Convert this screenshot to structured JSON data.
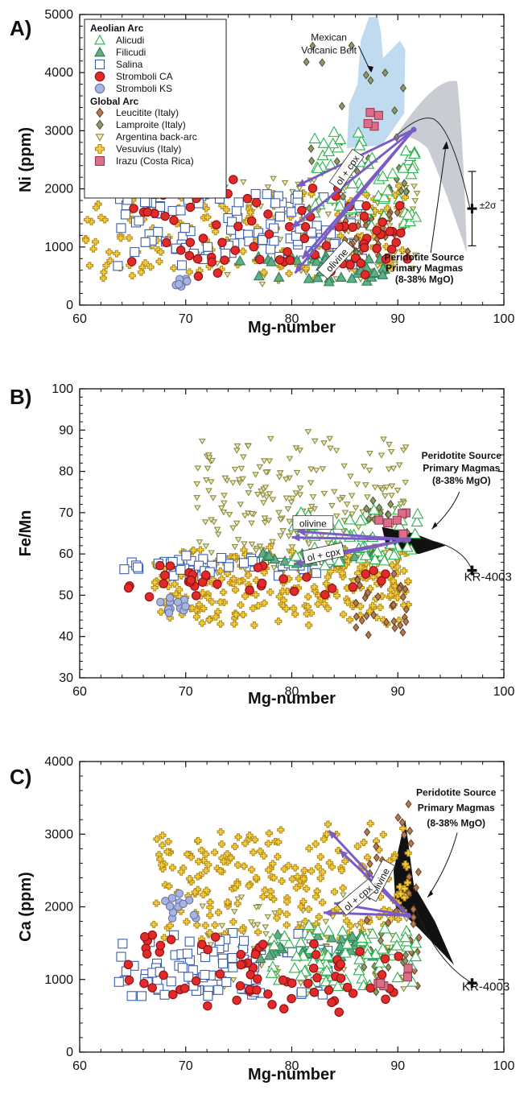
{
  "legend": {
    "group1_title": "Aeolian Arc",
    "group2_title": "Global Arc",
    "entries": [
      {
        "key": "alicudi",
        "label": "Alicudi"
      },
      {
        "key": "filicudi",
        "label": "Filicudi"
      },
      {
        "key": "salina",
        "label": "Salina"
      },
      {
        "key": "stromboli_ca",
        "label": "Stromboli CA"
      },
      {
        "key": "stromboli_ks",
        "label": "Stromboli KS"
      },
      {
        "key": "leucitite",
        "label": "Leucitite (Italy)"
      },
      {
        "key": "lamproite",
        "label": "Lamproite (Italy)"
      },
      {
        "key": "argentina",
        "label": "Argentina back-arc"
      },
      {
        "key": "vesuvius",
        "label": "Vesuvius (Italy)"
      },
      {
        "key": "irazu",
        "label": "Irazu (Costa Rica)"
      }
    ]
  },
  "styles": {
    "alicudi": {
      "shape": "triangle",
      "fill": "#ffffff",
      "stroke": "#2bb24c"
    },
    "filicudi": {
      "shape": "triangle",
      "fill": "#5fae86",
      "stroke": "#2f7d57"
    },
    "salina": {
      "shape": "square",
      "fill": "#ffffff",
      "stroke": "#3b5fb0"
    },
    "stromboli_ca": {
      "shape": "circle",
      "fill": "#e32a2a",
      "stroke": "#8c1010"
    },
    "stromboli_ks": {
      "shape": "circle",
      "fill": "#a8b4e0",
      "stroke": "#6873a8"
    },
    "leucitite": {
      "shape": "diamond",
      "fill": "#b27d55",
      "stroke": "#6b4224"
    },
    "lamproite": {
      "shape": "diamond",
      "fill": "#8e9a6b",
      "stroke": "#505a36"
    },
    "argentina": {
      "shape": "tridown",
      "fill": "#ecebb4",
      "stroke": "#8d8a45"
    },
    "vesuvius": {
      "shape": "cross",
      "fill": "#f7cf44",
      "stroke": "#b48c14"
    },
    "irazu": {
      "shape": "square",
      "fill": "#dc6e8a",
      "stroke": "#9b3b55"
    }
  },
  "colors": {
    "arrow": "#7a5cc4",
    "mvb": "#b9d6ee",
    "peridotite_gray": "#c9cdd3",
    "peridotite_black": "#111111"
  },
  "chart_data": [
    {
      "panel": "A)",
      "type": "scatter",
      "xlabel": "Mg-number",
      "ylabel": "Ni (ppm)",
      "xlim": [
        60,
        100
      ],
      "ylim": [
        0,
        5000
      ],
      "xticks": [
        60,
        70,
        80,
        90,
        100
      ],
      "yticks": [
        0,
        1000,
        2000,
        3000,
        4000,
        5000
      ],
      "annotations": [
        {
          "text": "Mexican",
          "x": 83.5,
          "y": 4550
        },
        {
          "text": "Volcanic Belt",
          "x": 83.5,
          "y": 4330
        },
        {
          "text": "Peridotite Source",
          "x": 92.5,
          "y": 770
        },
        {
          "text": "Primary Magmas",
          "x": 92.5,
          "y": 580
        },
        {
          "text": "(8-38% MgO)",
          "x": 92.5,
          "y": 390
        },
        {
          "text": "±2σ",
          "x": 97.7,
          "y": 1660
        }
      ],
      "arrow_labels": [
        {
          "text": "ol + cpx",
          "x": 85.2,
          "y": 2330,
          "angle": -55
        },
        {
          "text": "olivine",
          "x": 84.2,
          "y": 780,
          "angle": -48
        }
      ],
      "clusters": {
        "vesuvius": {
          "count": 180,
          "x": [
            60.5,
            91
          ],
          "y": [
            200,
            2300
          ]
        },
        "argentina": {
          "count": 90,
          "x": [
            72,
            92
          ],
          "y": [
            0,
            2600
          ]
        },
        "salina": {
          "count": 110,
          "x": [
            63.5,
            87
          ],
          "y": [
            500,
            2200
          ]
        },
        "stromboli_ks": {
          "count": 8,
          "x": [
            68,
            70.5
          ],
          "y": [
            300,
            480
          ]
        },
        "stromboli_ca": {
          "count": 80,
          "x": [
            63.5,
            91
          ],
          "y": [
            200,
            2400
          ]
        },
        "leucitite": {
          "count": 40,
          "x": [
            85,
            91
          ],
          "y": [
            700,
            1900
          ]
        },
        "lamproite": {
          "count": 30,
          "x": [
            81,
            91
          ],
          "y": [
            1200,
            4900
          ]
        },
        "filicudi": {
          "count": 40,
          "x": [
            75,
            89
          ],
          "y": [
            300,
            1000
          ]
        },
        "alicudi": {
          "count": 60,
          "x": [
            82,
            92
          ],
          "y": [
            900,
            3200
          ]
        },
        "irazu": {
          "count": 4,
          "x": [
            86,
            90.5
          ],
          "y": [
            2900,
            3700
          ]
        }
      }
    },
    {
      "panel": "B)",
      "type": "scatter",
      "xlabel": "Mg-number",
      "ylabel": "Fe/Mn",
      "xlim": [
        60,
        100
      ],
      "ylim": [
        30,
        100
      ],
      "xticks": [
        60,
        70,
        80,
        90,
        100
      ],
      "yticks": [
        30,
        40,
        50,
        60,
        70,
        80,
        90,
        100
      ],
      "annotations": [
        {
          "text": "Peridotite Source",
          "x": 96,
          "y": 83
        },
        {
          "text": "Primary Magmas",
          "x": 96,
          "y": 80
        },
        {
          "text": "(8-38% MgO)",
          "x": 96,
          "y": 77
        },
        {
          "text": "KR-4003",
          "x": 98.5,
          "y": 53.5
        }
      ],
      "arrow_labels": [
        {
          "text": "olivine",
          "x": 82,
          "y": 67.5,
          "angle": 0
        },
        {
          "text": "ol + cpx",
          "x": 83,
          "y": 60,
          "angle": -12
        }
      ],
      "clusters": {
        "argentina": {
          "count": 220,
          "x": [
            71,
            91
          ],
          "y": [
            50,
            93
          ]
        },
        "vesuvius": {
          "count": 260,
          "x": [
            67,
            91
          ],
          "y": [
            40,
            65
          ]
        },
        "salina": {
          "count": 50,
          "x": [
            64,
            85
          ],
          "y": [
            54,
            60
          ]
        },
        "stromboli_ks": {
          "count": 12,
          "x": [
            67.5,
            70.5
          ],
          "y": [
            45,
            50
          ]
        },
        "stromboli_ca": {
          "count": 35,
          "x": [
            64,
            91
          ],
          "y": [
            48,
            60
          ]
        },
        "leucitite": {
          "count": 30,
          "x": [
            86,
            91
          ],
          "y": [
            38,
            57
          ]
        },
        "lamproite": {
          "count": 15,
          "x": [
            87,
            91
          ],
          "y": [
            62,
            74
          ]
        },
        "filicudi": {
          "count": 15,
          "x": [
            77,
            88
          ],
          "y": [
            57,
            61
          ]
        },
        "alicudi": {
          "count": 60,
          "x": [
            80,
            92
          ],
          "y": [
            55,
            73
          ]
        },
        "irazu": {
          "count": 6,
          "x": [
            88,
            91
          ],
          "y": [
            64,
            71
          ]
        }
      }
    },
    {
      "panel": "C)",
      "type": "scatter",
      "xlabel": "Mg-number",
      "ylabel": "Ca (ppm)",
      "xlim": [
        60,
        100
      ],
      "ylim": [
        0,
        4000
      ],
      "xticks": [
        60,
        70,
        80,
        90,
        100
      ],
      "yticks": [
        0,
        1000,
        2000,
        3000,
        4000
      ],
      "annotations": [
        {
          "text": "Peridotite Source",
          "x": 95.5,
          "y": 3530
        },
        {
          "text": "Primary Magmas",
          "x": 95.5,
          "y": 3320
        },
        {
          "text": "(8-38% MgO)",
          "x": 95.5,
          "y": 3110
        },
        {
          "text": "KR-4003",
          "x": 98.3,
          "y": 850
        }
      ],
      "arrow_labels": [
        {
          "text": "olivine",
          "x": 88.3,
          "y": 2360,
          "angle": -62
        },
        {
          "text": "ol + cpx",
          "x": 86.2,
          "y": 2130,
          "angle": -40
        }
      ],
      "clusters": {
        "vesuvius": {
          "count": 220,
          "x": [
            67,
            91
          ],
          "y": [
            1300,
            3300
          ]
        },
        "argentina": {
          "count": 100,
          "x": [
            71,
            91
          ],
          "y": [
            600,
            2400
          ]
        },
        "salina": {
          "count": 90,
          "x": [
            63.5,
            85
          ],
          "y": [
            600,
            1800
          ]
        },
        "stromboli_ks": {
          "count": 12,
          "x": [
            68,
            71
          ],
          "y": [
            1700,
            2300
          ]
        },
        "stromboli_ca": {
          "count": 70,
          "x": [
            63.5,
            91
          ],
          "y": [
            400,
            1800
          ]
        },
        "leucitite": {
          "count": 35,
          "x": [
            87,
            92
          ],
          "y": [
            500,
            3900
          ]
        },
        "lamproite": {
          "count": 15,
          "x": [
            86,
            91
          ],
          "y": [
            500,
            1800
          ]
        },
        "filicudi": {
          "count": 35,
          "x": [
            77,
            88
          ],
          "y": [
            1200,
            1700
          ]
        },
        "alicudi": {
          "count": 70,
          "x": [
            78,
            92
          ],
          "y": [
            700,
            1900
          ]
        },
        "irazu": {
          "count": 5,
          "x": [
            87.5,
            91
          ],
          "y": [
            800,
            1300
          ]
        }
      }
    }
  ]
}
